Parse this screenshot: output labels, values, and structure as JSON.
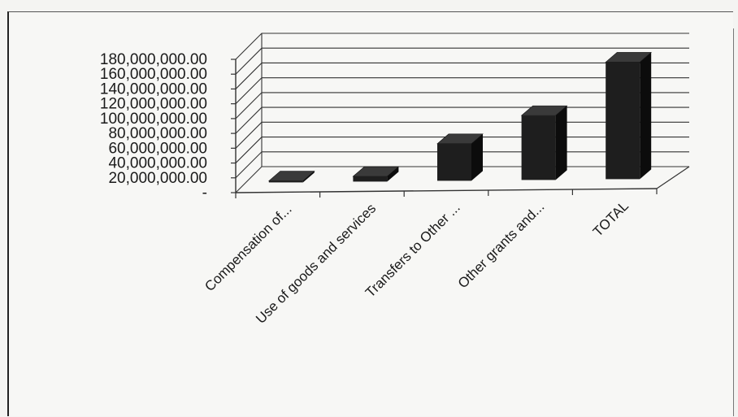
{
  "chart_data": {
    "type": "bar",
    "three_d": true,
    "categories": [
      "Compensation of...",
      "Use of goods and services",
      "Transfers to Other ...",
      "Other grants and...",
      "TOTAL"
    ],
    "values": [
      2000000,
      7000000,
      50000000,
      87000000,
      158000000
    ],
    "ylim": [
      0,
      180000000
    ],
    "y_ticks": [
      {
        "value": 0,
        "label": "-"
      },
      {
        "value": 20000000,
        "label": "20,000,000.00"
      },
      {
        "value": 40000000,
        "label": "40,000,000.00"
      },
      {
        "value": 60000000,
        "label": "60,000,000.00"
      },
      {
        "value": 80000000,
        "label": "80,000,000.00"
      },
      {
        "value": 100000000,
        "label": "100,000,000.00"
      },
      {
        "value": 120000000,
        "label": "120,000,000.00"
      },
      {
        "value": 140000000,
        "label": "140,000,000.00"
      },
      {
        "value": 160000000,
        "label": "160,000,000.00"
      },
      {
        "value": 180000000,
        "label": "180,000,000.00"
      }
    ],
    "title": "",
    "xlabel": "",
    "ylabel": "",
    "grid": true,
    "legend": "none",
    "colors": {
      "bar_front": "#1e1e1e",
      "bar_side": "#0c0c0c",
      "bar_top": "#3a3a3a",
      "grid": "#333333",
      "text": "#1a1a1a"
    }
  }
}
